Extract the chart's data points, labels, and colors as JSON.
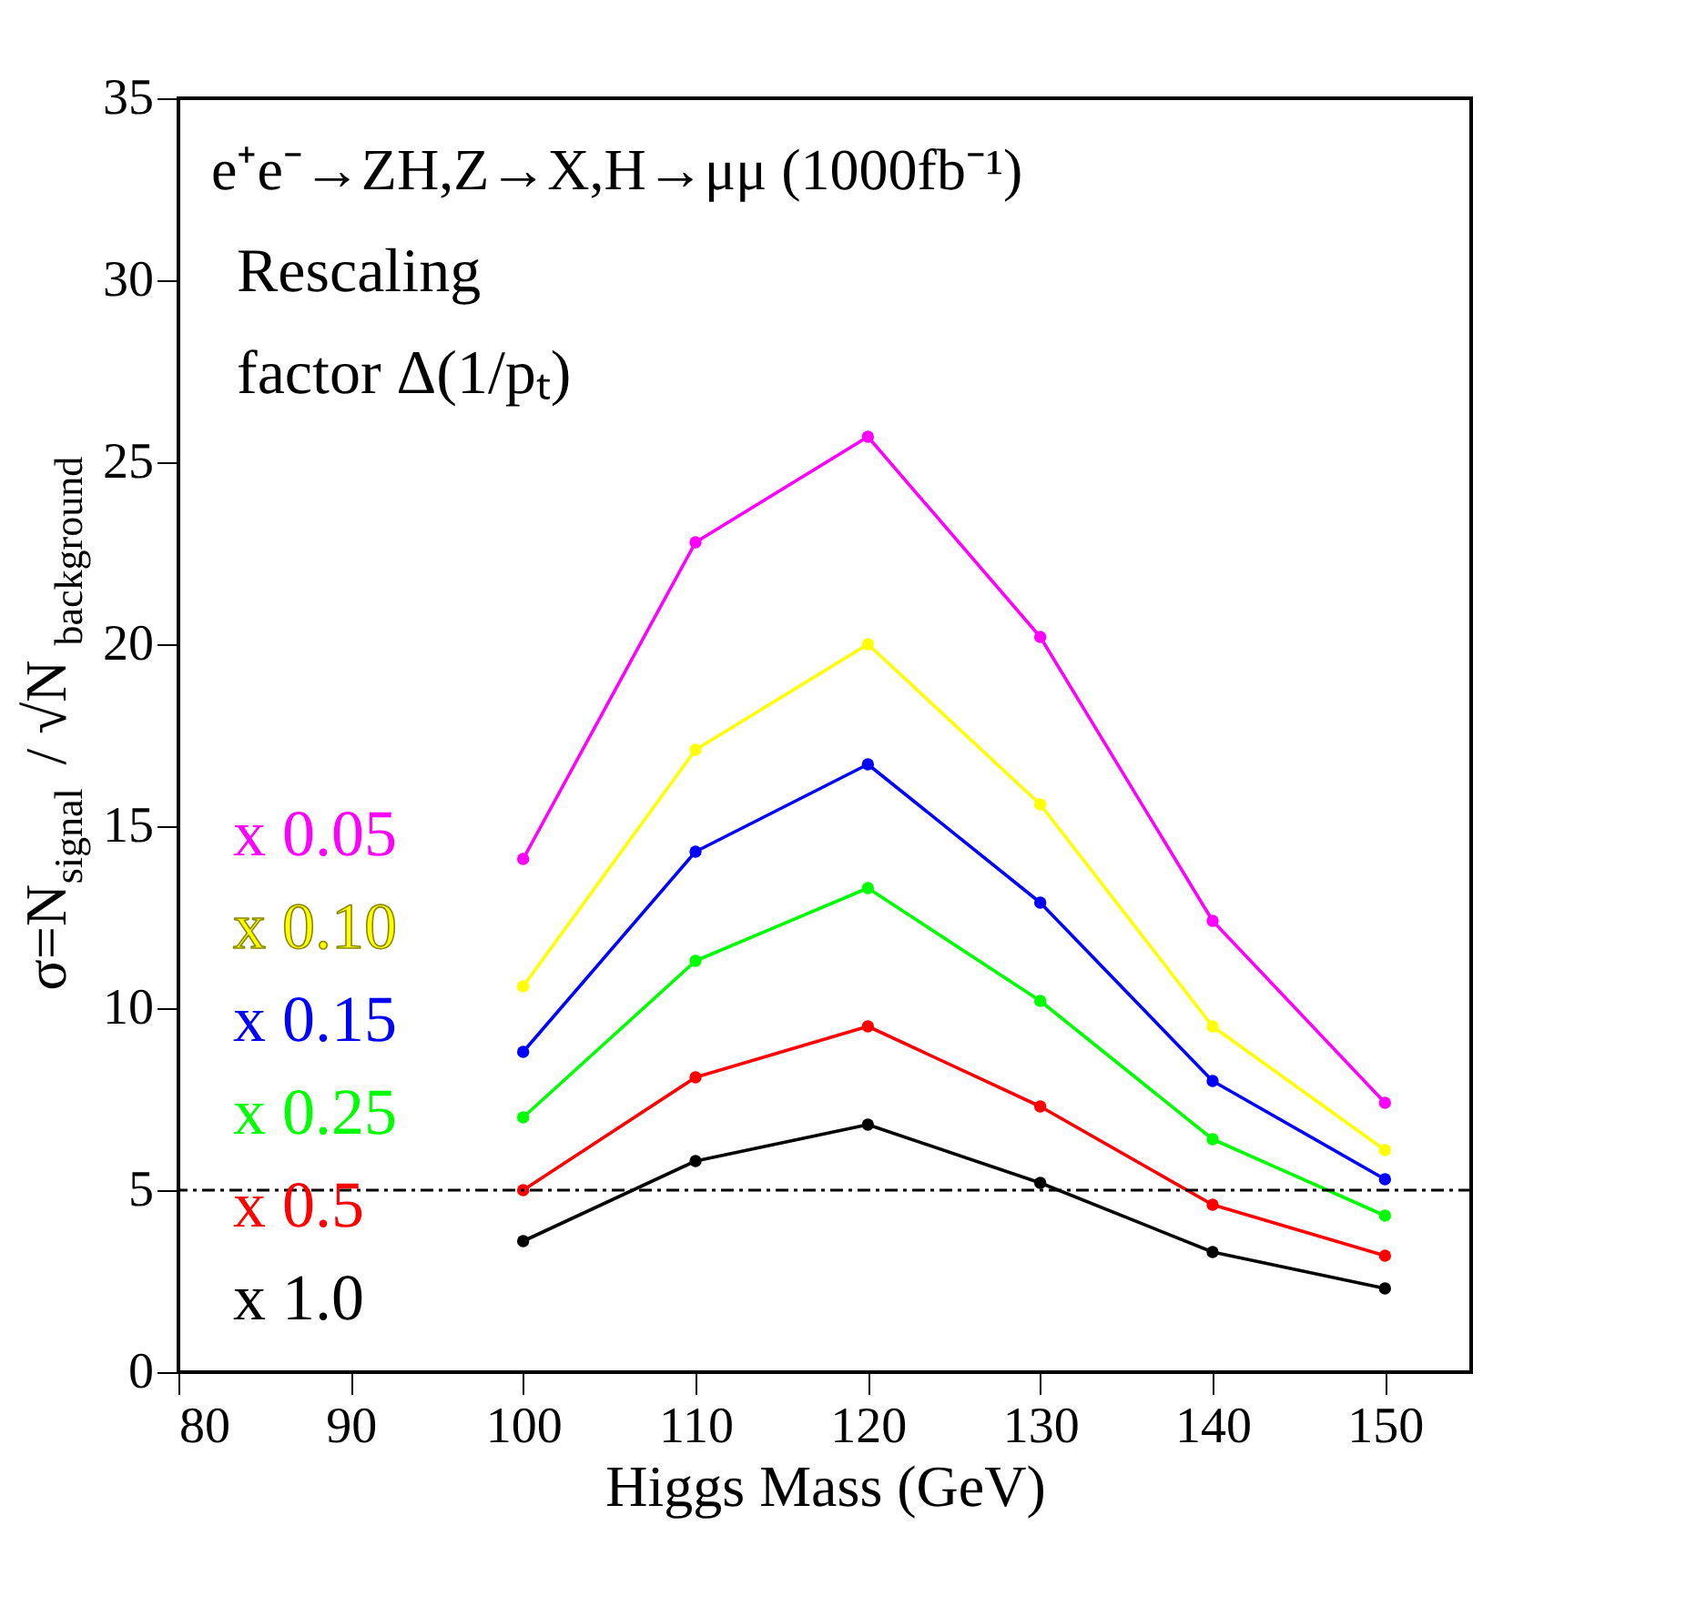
{
  "chart_data": {
    "type": "line",
    "xlabel": "Higgs Mass (GeV)",
    "ylabel": "σ=N$_{signal}$ / √N$_{background}$",
    "annotations": [
      "e⁺e⁻→ZH,Z→X,H→μμ (1000fb⁻¹)",
      "Rescaling",
      "factor Δ(1/pₜ)"
    ],
    "x": [
      100,
      110,
      120,
      130,
      140,
      150
    ],
    "series": [
      {
        "name": "x 0.05",
        "color": "#ff00ff",
        "values": [
          14.1,
          22.8,
          25.7,
          20.2,
          12.4,
          7.4
        ]
      },
      {
        "name": "x 0.10",
        "color": "#ffff00",
        "values": [
          10.6,
          17.1,
          20.0,
          15.6,
          9.5,
          6.1
        ]
      },
      {
        "name": "x 0.15",
        "color": "#0000ff",
        "values": [
          8.8,
          14.3,
          16.7,
          12.9,
          8.0,
          5.3
        ]
      },
      {
        "name": "x 0.25",
        "color": "#00ff00",
        "values": [
          7.0,
          11.3,
          13.3,
          10.2,
          6.4,
          4.3
        ]
      },
      {
        "name": "x 0.5",
        "color": "#ff0000",
        "values": [
          5.0,
          8.1,
          9.5,
          7.3,
          4.6,
          3.2
        ]
      },
      {
        "name": "x 1.0",
        "color": "#000000",
        "values": [
          3.6,
          5.8,
          6.8,
          5.2,
          3.3,
          2.3
        ]
      }
    ],
    "xlim": [
      80,
      155
    ],
    "xticks": [
      80,
      90,
      100,
      110,
      120,
      130,
      140,
      150
    ],
    "ylim": [
      0,
      35
    ],
    "yticks": [
      0,
      5,
      10,
      15,
      20,
      25,
      30,
      35
    ],
    "ref_lines": [
      {
        "axis": "y",
        "value": 5,
        "color": "#000000",
        "line_style": "dashed"
      }
    ],
    "marker": "circle",
    "line_style": "solid",
    "grid": false,
    "legend": false
  }
}
